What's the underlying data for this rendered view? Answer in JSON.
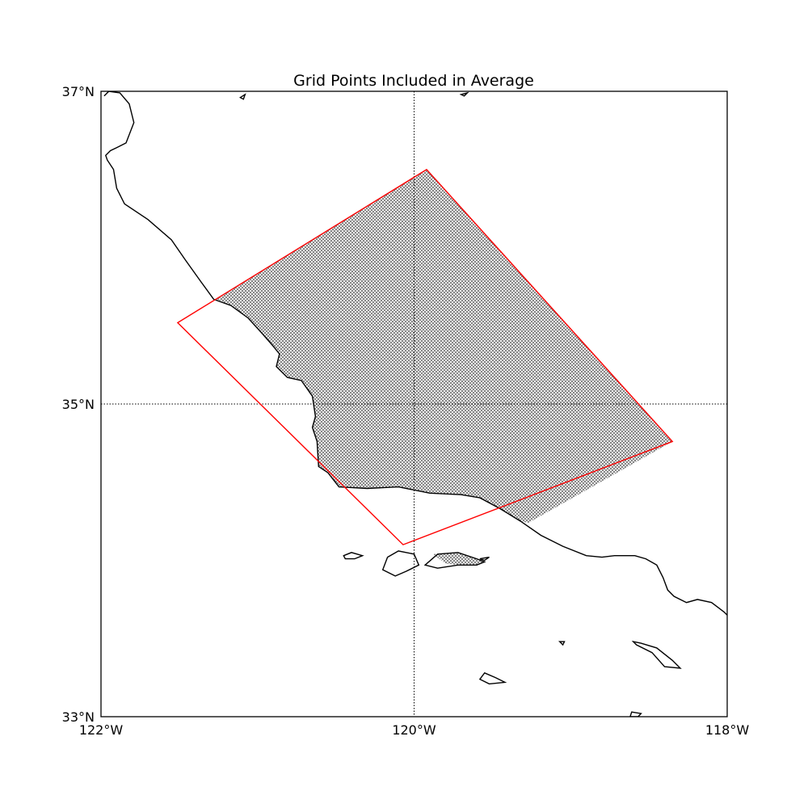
{
  "title": "Grid Points Included in Average",
  "colors": {
    "coastline": "#000000",
    "box_outline": "#ff0000",
    "grid_fill": "#8c8c8c",
    "graticule": "#000000",
    "background": "#ffffff"
  },
  "chart_data": {
    "type": "map",
    "projection": "plate-carree",
    "lon_range": [
      -122,
      -118
    ],
    "lat_range": [
      33,
      37
    ],
    "lon_ticks": [
      {
        "value": -122,
        "label": "122°W"
      },
      {
        "value": -120,
        "label": "120°W"
      },
      {
        "value": -118,
        "label": "118°W"
      }
    ],
    "lat_ticks": [
      {
        "value": 37,
        "label": "37°N"
      },
      {
        "value": 35,
        "label": "35°N"
      },
      {
        "value": 33,
        "label": "33°N"
      }
    ],
    "graticule": {
      "lons": [
        -120
      ],
      "lats": [
        35
      ],
      "style": "dotted"
    },
    "averaging_box": [
      [
        -119.92,
        36.5
      ],
      [
        -118.35,
        34.76
      ],
      [
        -120.07,
        34.1
      ],
      [
        -121.51,
        35.52
      ]
    ],
    "coastline_mainland": [
      [
        -121.98,
        36.97
      ],
      [
        -121.95,
        37.0
      ],
      [
        -121.88,
        36.99
      ],
      [
        -121.82,
        36.92
      ],
      [
        -121.79,
        36.8
      ],
      [
        -121.84,
        36.67
      ],
      [
        -121.9,
        36.64
      ],
      [
        -121.94,
        36.62
      ],
      [
        -121.97,
        36.59
      ],
      [
        -121.96,
        36.56
      ],
      [
        -121.92,
        36.5
      ],
      [
        -121.9,
        36.38
      ],
      [
        -121.85,
        36.28
      ],
      [
        -121.7,
        36.18
      ],
      [
        -121.55,
        36.05
      ],
      [
        -121.46,
        35.92
      ],
      [
        -121.36,
        35.78
      ],
      [
        -121.28,
        35.67
      ],
      [
        -121.17,
        35.63
      ],
      [
        -121.06,
        35.55
      ],
      [
        -120.97,
        35.45
      ],
      [
        -120.9,
        35.37
      ],
      [
        -120.86,
        35.32
      ],
      [
        -120.88,
        35.24
      ],
      [
        -120.81,
        35.17
      ],
      [
        -120.72,
        35.15
      ],
      [
        -120.65,
        35.05
      ],
      [
        -120.63,
        34.92
      ],
      [
        -120.65,
        34.85
      ],
      [
        -120.62,
        34.76
      ],
      [
        -120.61,
        34.6
      ],
      [
        -120.55,
        34.56
      ],
      [
        -120.48,
        34.47
      ],
      [
        -120.3,
        34.46
      ],
      [
        -120.1,
        34.47
      ],
      [
        -119.9,
        34.43
      ],
      [
        -119.7,
        34.42
      ],
      [
        -119.58,
        34.4
      ],
      [
        -119.45,
        34.33
      ],
      [
        -119.32,
        34.25
      ],
      [
        -119.19,
        34.16
      ],
      [
        -119.05,
        34.09
      ],
      [
        -118.9,
        34.03
      ],
      [
        -118.8,
        34.02
      ],
      [
        -118.72,
        34.03
      ],
      [
        -118.59,
        34.03
      ],
      [
        -118.52,
        34.01
      ],
      [
        -118.45,
        33.97
      ],
      [
        -118.41,
        33.89
      ],
      [
        -118.38,
        33.81
      ],
      [
        -118.34,
        33.77
      ],
      [
        -118.26,
        33.73
      ],
      [
        -118.19,
        33.75
      ],
      [
        -118.1,
        33.73
      ],
      [
        -118.02,
        33.67
      ],
      [
        -118.0,
        33.65
      ]
    ],
    "islands": [
      [
        [
          -119.93,
          33.97
        ],
        [
          -119.85,
          34.04
        ],
        [
          -119.72,
          34.05
        ],
        [
          -119.6,
          34.01
        ],
        [
          -119.55,
          33.99
        ],
        [
          -119.6,
          33.97
        ],
        [
          -119.72,
          33.97
        ],
        [
          -119.85,
          33.95
        ]
      ],
      [
        [
          -120.17,
          34.02
        ],
        [
          -120.1,
          34.06
        ],
        [
          -120.0,
          34.04
        ],
        [
          -119.97,
          33.97
        ],
        [
          -120.05,
          33.93
        ],
        [
          -120.12,
          33.9
        ],
        [
          -120.2,
          33.94
        ]
      ],
      [
        [
          -120.45,
          34.03
        ],
        [
          -120.4,
          34.05
        ],
        [
          -120.33,
          34.03
        ],
        [
          -120.38,
          34.01
        ],
        [
          -120.44,
          34.01
        ]
      ],
      [
        [
          -119.58,
          34.01
        ],
        [
          -119.52,
          34.02
        ],
        [
          -119.55,
          34.0
        ]
      ],
      [
        [
          -118.6,
          33.48
        ],
        [
          -118.55,
          33.47
        ],
        [
          -118.45,
          33.44
        ],
        [
          -118.35,
          33.36
        ],
        [
          -118.3,
          33.31
        ],
        [
          -118.4,
          33.32
        ],
        [
          -118.48,
          33.41
        ],
        [
          -118.58,
          33.46
        ]
      ],
      [
        [
          -119.55,
          33.28
        ],
        [
          -119.48,
          33.25
        ],
        [
          -119.42,
          33.22
        ],
        [
          -119.52,
          33.21
        ],
        [
          -119.58,
          33.24
        ]
      ],
      [
        [
          -119.07,
          33.48
        ],
        [
          -119.04,
          33.48
        ],
        [
          -119.05,
          33.46
        ]
      ],
      [
        [
          -118.61,
          33.03
        ],
        [
          -118.55,
          33.02
        ],
        [
          -118.57,
          33.0
        ],
        [
          -118.62,
          33.0
        ]
      ],
      [
        [
          -121.11,
          36.96
        ],
        [
          -121.08,
          36.98
        ],
        [
          -121.09,
          36.95
        ]
      ],
      [
        [
          -119.7,
          36.98
        ],
        [
          -119.66,
          36.99
        ],
        [
          -119.68,
          36.97
        ]
      ]
    ],
    "hatched_region": [
      [
        -121.26,
        35.67
      ],
      [
        -119.92,
        36.5
      ],
      [
        -118.35,
        34.76
      ],
      [
        -119.27,
        34.24
      ],
      [
        -119.32,
        34.25
      ],
      [
        -119.45,
        34.33
      ],
      [
        -119.58,
        34.4
      ],
      [
        -119.7,
        34.42
      ],
      [
        -119.9,
        34.43
      ],
      [
        -120.1,
        34.47
      ],
      [
        -120.3,
        34.46
      ],
      [
        -120.48,
        34.47
      ],
      [
        -120.55,
        34.56
      ],
      [
        -120.61,
        34.6
      ],
      [
        -120.62,
        34.76
      ],
      [
        -120.65,
        34.85
      ],
      [
        -120.63,
        34.92
      ],
      [
        -120.65,
        35.05
      ],
      [
        -120.72,
        35.15
      ],
      [
        -120.81,
        35.17
      ],
      [
        -120.88,
        35.24
      ],
      [
        -120.86,
        35.32
      ],
      [
        -120.9,
        35.37
      ],
      [
        -120.97,
        35.45
      ],
      [
        -121.06,
        35.55
      ],
      [
        -121.17,
        35.63
      ]
    ],
    "hatched_island": [
      [
        -119.88,
        34.04
      ],
      [
        -119.72,
        34.05
      ],
      [
        -119.6,
        34.01
      ],
      [
        -119.55,
        33.99
      ],
      [
        -119.6,
        33.97
      ],
      [
        -119.72,
        33.97
      ],
      [
        -119.8,
        33.98
      ]
    ]
  }
}
